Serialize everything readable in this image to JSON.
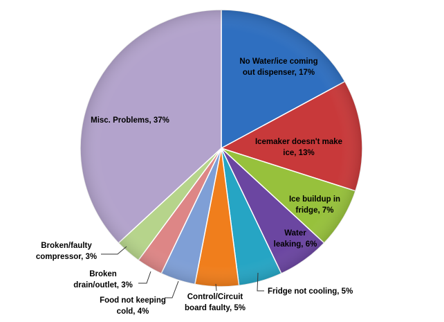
{
  "chart_data": {
    "type": "pie",
    "title": "",
    "start_angle_deg": 0,
    "direction": "clockwise",
    "slices": [
      {
        "label": "No Water/ice coming out dispenser, 17%",
        "value": 17,
        "color": "#2f6fc0"
      },
      {
        "label": "Icemaker doesn't make ice, 13%",
        "value": 13,
        "color": "#c8393a"
      },
      {
        "label": "Ice buildup in fridge, 7%",
        "value": 7,
        "color": "#97c13c"
      },
      {
        "label": "Water leaking, 6%",
        "value": 6,
        "color": "#6b46a1"
      },
      {
        "label": "Fridge not cooling,  5%",
        "value": 5,
        "color": "#26a5c4"
      },
      {
        "label": "Control/Circuit board faulty, 5%",
        "value": 5,
        "color": "#f07e1c"
      },
      {
        "label": "Food not keeping cold, 4%",
        "value": 4,
        "color": "#7f9fd6"
      },
      {
        "label": "Broken drain/outlet, 3%",
        "value": 3,
        "color": "#dd8686"
      },
      {
        "label": "Broken/faulty compressor, 3%",
        "value": 3,
        "color": "#b6d48b"
      },
      {
        "label": "Misc. Problems, 37%",
        "value": 37,
        "color": "#b3a3cc"
      }
    ]
  }
}
